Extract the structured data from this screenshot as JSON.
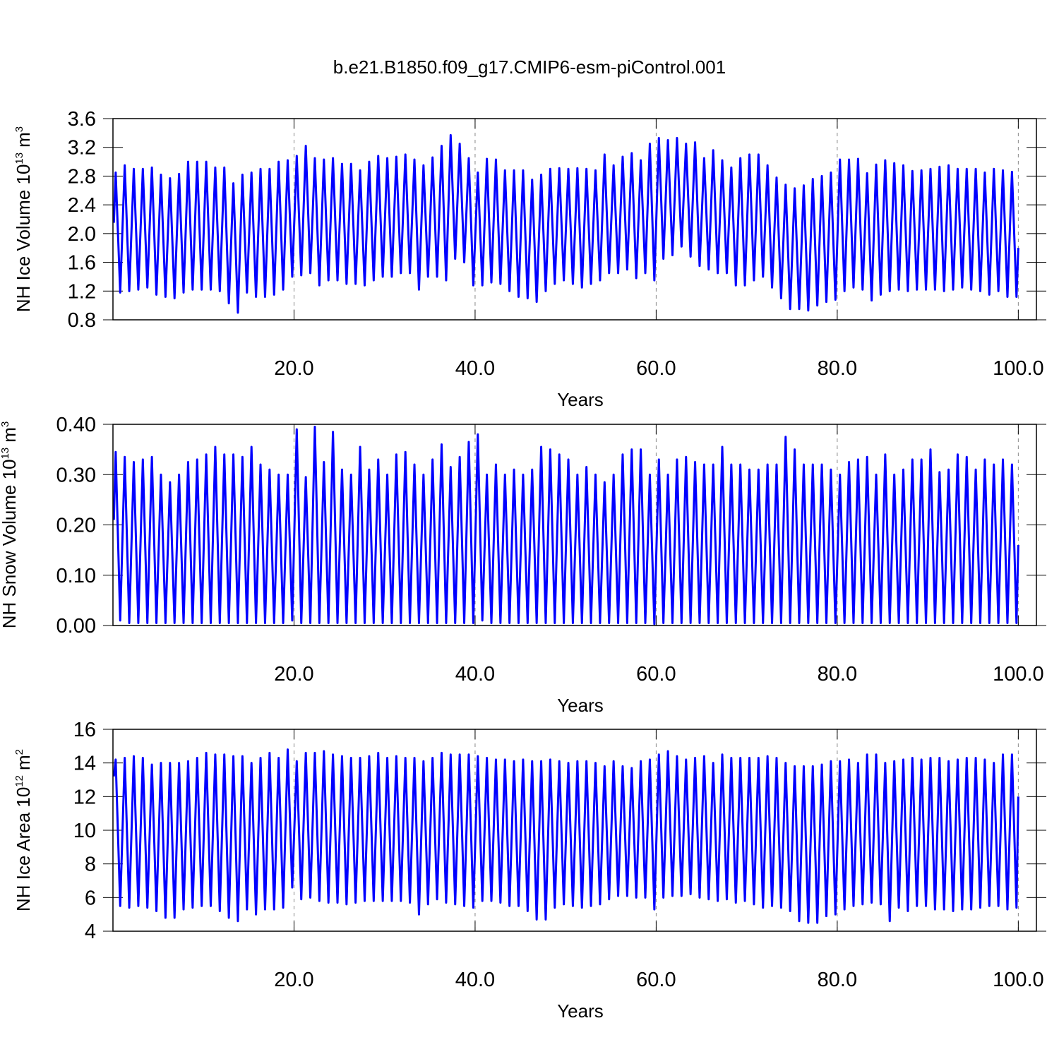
{
  "chart_data": [
    {
      "type": "line",
      "title": "b.e21.B1850.f09_g17.CMIP6-esm-piControl.001",
      "ylabel": {
        "text": "NH Ice Volume 10",
        "exponent": "13",
        "unit": "m",
        "unit_exponent": "3"
      },
      "xlabel": "Years",
      "color": "#0000ff",
      "grid": true,
      "xlim": [
        0,
        102
      ],
      "xticks": [
        {
          "value": 20,
          "label": "20.0"
        },
        {
          "value": 40,
          "label": "40.0"
        },
        {
          "value": 60,
          "label": "60.0"
        },
        {
          "value": 80,
          "label": "80.0"
        },
        {
          "value": 100,
          "label": "100.0"
        }
      ],
      "ylim": [
        0.8,
        3.6
      ],
      "yticks": [
        0.8,
        1.2,
        1.6,
        {
          "value": 2,
          "label": "2.0"
        },
        2.4,
        2.8,
        3.2,
        3.6
      ],
      "x": [
        0.1,
        0.3,
        0.8,
        1.3,
        1.8,
        2.3,
        2.8,
        3.3,
        3.8,
        4.3,
        4.8,
        5.3,
        5.8,
        6.3,
        6.8,
        7.3,
        7.8,
        8.3,
        8.8,
        9.3,
        9.8,
        10.3,
        10.8,
        11.3,
        11.8,
        12.3,
        12.8,
        13.3,
        13.8,
        14.3,
        14.8,
        15.3,
        15.8,
        16.3,
        16.8,
        17.3,
        17.8,
        18.3,
        18.8,
        19.3,
        19.8,
        20.3,
        20.8,
        21.3,
        21.8,
        22.3,
        22.8,
        23.3,
        23.8,
        24.3,
        24.8,
        25.3,
        25.8,
        26.3,
        26.8,
        27.3,
        27.8,
        28.3,
        28.8,
        29.3,
        29.8,
        30.3,
        30.8,
        31.3,
        31.8,
        32.3,
        32.8,
        33.3,
        33.8,
        34.3,
        34.8,
        35.3,
        35.8,
        36.3,
        36.8,
        37.3,
        37.8,
        38.3,
        38.8,
        39.3,
        39.8,
        40.3,
        40.8,
        41.3,
        41.8,
        42.3,
        42.8,
        43.3,
        43.8,
        44.3,
        44.8,
        45.3,
        45.8,
        46.3,
        46.8,
        47.3,
        47.8,
        48.3,
        48.8,
        49.3,
        49.8,
        50.3,
        50.8,
        51.3,
        51.8,
        52.3,
        52.8,
        53.3,
        53.8,
        54.3,
        54.8,
        55.3,
        55.8,
        56.3,
        56.8,
        57.3,
        57.8,
        58.3,
        58.8,
        59.3,
        59.8,
        60.3,
        60.8,
        61.3,
        61.8,
        62.3,
        62.8,
        63.3,
        63.8,
        64.3,
        64.8,
        65.3,
        65.8,
        66.3,
        66.8,
        67.3,
        67.8,
        68.3,
        68.8,
        69.3,
        69.8,
        70.3,
        70.8,
        71.3,
        71.8,
        72.3,
        72.8,
        73.3,
        73.8,
        74.3,
        74.8,
        75.3,
        75.8,
        76.3,
        76.8,
        77.3,
        77.8,
        78.3,
        78.8,
        79.3,
        79.8,
        80.3,
        80.8,
        81.3,
        81.8,
        82.3,
        82.8,
        83.3,
        83.8,
        84.3,
        84.8,
        85.3,
        85.8,
        86.3,
        86.8,
        87.3,
        87.8,
        88.3,
        88.8,
        89.3,
        89.8,
        90.3,
        90.8,
        91.3,
        91.8,
        92.3,
        92.8,
        93.3,
        93.8,
        94.3,
        94.8,
        95.3,
        95.8,
        96.3,
        96.8,
        97.3,
        97.8,
        98.3,
        98.8,
        99.3,
        99.8,
        100
      ],
      "values": [
        2.15,
        2.85,
        1.18,
        2.95,
        1.2,
        2.9,
        1.22,
        2.9,
        1.25,
        2.92,
        1.15,
        2.82,
        1.12,
        2.77,
        1.1,
        2.83,
        1.18,
        3.0,
        1.22,
        3.0,
        1.22,
        3.0,
        1.22,
        2.92,
        1.2,
        2.92,
        1.03,
        2.7,
        0.9,
        2.82,
        1.18,
        2.85,
        1.12,
        2.9,
        1.12,
        2.9,
        1.15,
        3.0,
        1.22,
        3.02,
        1.4,
        3.08,
        1.42,
        3.22,
        1.45,
        3.05,
        1.28,
        3.03,
        1.35,
        3.05,
        1.35,
        2.97,
        1.3,
        2.97,
        1.3,
        2.88,
        1.28,
        3.0,
        1.35,
        3.08,
        1.4,
        3.05,
        1.4,
        3.07,
        1.45,
        3.1,
        1.45,
        3.03,
        1.22,
        2.95,
        1.4,
        3.06,
        1.4,
        3.22,
        1.35,
        3.37,
        1.65,
        3.25,
        1.6,
        3.05,
        1.28,
        2.85,
        1.28,
        3.04,
        1.32,
        3.03,
        1.3,
        2.88,
        1.2,
        2.88,
        1.12,
        2.88,
        1.1,
        2.75,
        1.05,
        2.82,
        1.2,
        2.9,
        1.3,
        2.91,
        1.35,
        2.9,
        1.3,
        2.91,
        1.25,
        2.9,
        1.3,
        2.88,
        1.35,
        3.1,
        1.45,
        2.95,
        1.45,
        3.07,
        1.5,
        3.12,
        1.38,
        3.02,
        1.45,
        3.25,
        1.35,
        3.33,
        1.65,
        3.3,
        1.7,
        3.33,
        1.82,
        3.25,
        1.68,
        3.27,
        1.55,
        3.05,
        1.5,
        3.16,
        1.45,
        3.02,
        1.45,
        2.92,
        1.28,
        3.05,
        1.28,
        3.1,
        1.35,
        3.1,
        1.4,
        2.95,
        1.25,
        2.78,
        1.1,
        2.68,
        0.95,
        2.63,
        0.95,
        2.67,
        0.93,
        2.76,
        1.0,
        2.8,
        1.05,
        2.85,
        1.08,
        3.03,
        1.2,
        3.03,
        1.25,
        3.04,
        1.22,
        2.84,
        1.07,
        2.96,
        1.15,
        3.02,
        1.2,
        2.98,
        1.22,
        2.95,
        1.2,
        2.87,
        1.22,
        2.88,
        1.22,
        2.9,
        1.22,
        2.93,
        1.2,
        2.95,
        1.22,
        2.9,
        1.25,
        2.9,
        1.22,
        2.9,
        1.2,
        2.85,
        1.15,
        2.9,
        1.2,
        2.88,
        1.12,
        2.86,
        1.12,
        1.8
      ]
    },
    {
      "type": "line",
      "ylabel": {
        "text": "NH Snow Volume 10",
        "exponent": "13",
        "unit": "m",
        "unit_exponent": "3"
      },
      "xlabel": "Years",
      "color": "#0000ff",
      "grid": true,
      "xlim": [
        0,
        102
      ],
      "xticks": [
        {
          "value": 20,
          "label": "20.0"
        },
        {
          "value": 40,
          "label": "40.0"
        },
        {
          "value": 60,
          "label": "60.0"
        },
        {
          "value": 80,
          "label": "80.0"
        },
        {
          "value": 100,
          "label": "100.0"
        }
      ],
      "ylim": [
        0,
        0.4
      ],
      "yticks": [
        {
          "value": 0,
          "label": "0.00"
        },
        {
          "value": 0.1,
          "label": "0.10"
        },
        {
          "value": 0.2,
          "label": "0.20"
        },
        {
          "value": 0.3,
          "label": "0.30"
        },
        {
          "value": 0.4,
          "label": "0.40"
        }
      ],
      "x": [
        0.1,
        0.3,
        0.8,
        1.3,
        1.8,
        2.3,
        2.8,
        3.3,
        3.8,
        4.3,
        4.8,
        5.3,
        5.8,
        6.3,
        6.8,
        7.3,
        7.8,
        8.3,
        8.8,
        9.3,
        9.8,
        10.3,
        10.8,
        11.3,
        11.8,
        12.3,
        12.8,
        13.3,
        13.8,
        14.3,
        14.8,
        15.3,
        15.8,
        16.3,
        16.8,
        17.3,
        17.8,
        18.3,
        18.8,
        19.3,
        19.8,
        20.3,
        20.8,
        21.3,
        21.8,
        22.3,
        22.8,
        23.3,
        23.8,
        24.3,
        24.8,
        25.3,
        25.8,
        26.3,
        26.8,
        27.3,
        27.8,
        28.3,
        28.8,
        29.3,
        29.8,
        30.3,
        30.8,
        31.3,
        31.8,
        32.3,
        32.8,
        33.3,
        33.8,
        34.3,
        34.8,
        35.3,
        35.8,
        36.3,
        36.8,
        37.3,
        37.8,
        38.3,
        38.8,
        39.3,
        39.8,
        40.3,
        40.8,
        41.3,
        41.8,
        42.3,
        42.8,
        43.3,
        43.8,
        44.3,
        44.8,
        45.3,
        45.8,
        46.3,
        46.8,
        47.3,
        47.8,
        48.3,
        48.8,
        49.3,
        49.8,
        50.3,
        50.8,
        51.3,
        51.8,
        52.3,
        52.8,
        53.3,
        53.8,
        54.3,
        54.8,
        55.3,
        55.8,
        56.3,
        56.8,
        57.3,
        57.8,
        58.3,
        58.8,
        59.3,
        59.8,
        60.3,
        60.8,
        61.3,
        61.8,
        62.3,
        62.8,
        63.3,
        63.8,
        64.3,
        64.8,
        65.3,
        65.8,
        66.3,
        66.8,
        67.3,
        67.8,
        68.3,
        68.8,
        69.3,
        69.8,
        70.3,
        70.8,
        71.3,
        71.8,
        72.3,
        72.8,
        73.3,
        73.8,
        74.3,
        74.8,
        75.3,
        75.8,
        76.3,
        76.8,
        77.3,
        77.8,
        78.3,
        78.8,
        79.3,
        79.8,
        80.3,
        80.8,
        81.3,
        81.8,
        82.3,
        82.8,
        83.3,
        83.8,
        84.3,
        84.8,
        85.3,
        85.8,
        86.3,
        86.8,
        87.3,
        87.8,
        88.3,
        88.8,
        89.3,
        89.8,
        90.3,
        90.8,
        91.3,
        91.8,
        92.3,
        92.8,
        93.3,
        93.8,
        94.3,
        94.8,
        95.3,
        95.8,
        96.3,
        96.8,
        97.3,
        97.8,
        98.3,
        98.8,
        99.3,
        99.8,
        100
      ],
      "values": [
        0.21,
        0.345,
        0.01,
        0.335,
        0.005,
        0.325,
        0.005,
        0.33,
        0.005,
        0.335,
        0.005,
        0.3,
        0.005,
        0.285,
        0.005,
        0.3,
        0.005,
        0.325,
        0.005,
        0.33,
        0.005,
        0.34,
        0.005,
        0.355,
        0.005,
        0.34,
        0.005,
        0.34,
        0.005,
        0.335,
        0.005,
        0.355,
        0.005,
        0.32,
        0.005,
        0.31,
        0.005,
        0.3,
        0.005,
        0.3,
        0.01,
        0.39,
        0.005,
        0.295,
        0.005,
        0.395,
        0.005,
        0.325,
        0.005,
        0.385,
        0.005,
        0.31,
        0.005,
        0.3,
        0.005,
        0.355,
        0.005,
        0.31,
        0.005,
        0.33,
        0.005,
        0.3,
        0.005,
        0.34,
        0.005,
        0.345,
        0.005,
        0.32,
        0.005,
        0.3,
        0.005,
        0.33,
        0.005,
        0.36,
        0.005,
        0.315,
        0.005,
        0.335,
        0.005,
        0.365,
        0.005,
        0.38,
        0.01,
        0.3,
        0.005,
        0.32,
        0.005,
        0.3,
        0.005,
        0.31,
        0.005,
        0.3,
        0.005,
        0.31,
        0.005,
        0.355,
        0.005,
        0.35,
        0.005,
        0.34,
        0.005,
        0.33,
        0.005,
        0.3,
        0.005,
        0.315,
        0.005,
        0.3,
        0.005,
        0.285,
        0.005,
        0.3,
        0.005,
        0.34,
        0.005,
        0.35,
        0.005,
        0.35,
        0.005,
        0.3,
        0.003,
        0.33,
        0.005,
        0.3,
        0.005,
        0.33,
        0.005,
        0.335,
        0.005,
        0.325,
        0.005,
        0.32,
        0.005,
        0.32,
        0.005,
        0.355,
        0.005,
        0.32,
        0.005,
        0.32,
        0.005,
        0.31,
        0.005,
        0.31,
        0.005,
        0.32,
        0.005,
        0.32,
        0.005,
        0.375,
        0.005,
        0.35,
        0.005,
        0.32,
        0.005,
        0.32,
        0.005,
        0.32,
        0.005,
        0.31,
        0.005,
        0.3,
        0.005,
        0.325,
        0.005,
        0.33,
        0.005,
        0.335,
        0.005,
        0.3,
        0.005,
        0.34,
        0.005,
        0.3,
        0.005,
        0.31,
        0.005,
        0.33,
        0.005,
        0.33,
        0.005,
        0.35,
        0.005,
        0.305,
        0.005,
        0.31,
        0.005,
        0.34,
        0.005,
        0.335,
        0.005,
        0.31,
        0.005,
        0.33,
        0.005,
        0.32,
        0.005,
        0.33,
        0.005,
        0.32,
        0.005,
        0.16
      ]
    },
    {
      "type": "line",
      "ylabel": {
        "text": "NH Ice Area 10",
        "exponent": "12",
        "unit": "m",
        "unit_exponent": "2"
      },
      "xlabel": "Years",
      "color": "#0000ff",
      "grid": true,
      "xlim": [
        0,
        102
      ],
      "xticks": [
        {
          "value": 20,
          "label": "20.0"
        },
        {
          "value": 40,
          "label": "40.0"
        },
        {
          "value": 60,
          "label": "60.0"
        },
        {
          "value": 80,
          "label": "80.0"
        },
        {
          "value": 100,
          "label": "100.0"
        }
      ],
      "ylim": [
        4,
        16
      ],
      "yticks": [
        4,
        6,
        8,
        10,
        12,
        14,
        16
      ],
      "x": [
        0.1,
        0.3,
        0.8,
        1.3,
        1.8,
        2.3,
        2.8,
        3.3,
        3.8,
        4.3,
        4.8,
        5.3,
        5.8,
        6.3,
        6.8,
        7.3,
        7.8,
        8.3,
        8.8,
        9.3,
        9.8,
        10.3,
        10.8,
        11.3,
        11.8,
        12.3,
        12.8,
        13.3,
        13.8,
        14.3,
        14.8,
        15.3,
        15.8,
        16.3,
        16.8,
        17.3,
        17.8,
        18.3,
        18.8,
        19.3,
        19.8,
        20.3,
        20.8,
        21.3,
        21.8,
        22.3,
        22.8,
        23.3,
        23.8,
        24.3,
        24.8,
        25.3,
        25.8,
        26.3,
        26.8,
        27.3,
        27.8,
        28.3,
        28.8,
        29.3,
        29.8,
        30.3,
        30.8,
        31.3,
        31.8,
        32.3,
        32.8,
        33.3,
        33.8,
        34.3,
        34.8,
        35.3,
        35.8,
        36.3,
        36.8,
        37.3,
        37.8,
        38.3,
        38.8,
        39.3,
        39.8,
        40.3,
        40.8,
        41.3,
        41.8,
        42.3,
        42.8,
        43.3,
        43.8,
        44.3,
        44.8,
        45.3,
        45.8,
        46.3,
        46.8,
        47.3,
        47.8,
        48.3,
        48.8,
        49.3,
        49.8,
        50.3,
        50.8,
        51.3,
        51.8,
        52.3,
        52.8,
        53.3,
        53.8,
        54.3,
        54.8,
        55.3,
        55.8,
        56.3,
        56.8,
        57.3,
        57.8,
        58.3,
        58.8,
        59.3,
        59.8,
        60.3,
        60.8,
        61.3,
        61.8,
        62.3,
        62.8,
        63.3,
        63.8,
        64.3,
        64.8,
        65.3,
        65.8,
        66.3,
        66.8,
        67.3,
        67.8,
        68.3,
        68.8,
        69.3,
        69.8,
        70.3,
        70.8,
        71.3,
        71.8,
        72.3,
        72.8,
        73.3,
        73.8,
        74.3,
        74.8,
        75.3,
        75.8,
        76.3,
        76.8,
        77.3,
        77.8,
        78.3,
        78.8,
        79.3,
        79.8,
        80.3,
        80.8,
        81.3,
        81.8,
        82.3,
        82.8,
        83.3,
        83.8,
        84.3,
        84.8,
        85.3,
        85.8,
        86.3,
        86.8,
        87.3,
        87.8,
        88.3,
        88.8,
        89.3,
        89.8,
        90.3,
        90.8,
        91.3,
        91.8,
        92.3,
        92.8,
        93.3,
        93.8,
        94.3,
        94.8,
        95.3,
        95.8,
        96.3,
        96.8,
        97.3,
        97.8,
        98.3,
        98.8,
        99.3,
        99.8,
        100
      ],
      "values": [
        13.2,
        14.2,
        5.5,
        14.3,
        5.4,
        14.4,
        5.5,
        14.3,
        5.4,
        13.9,
        5.2,
        14.0,
        4.8,
        14.0,
        4.8,
        14.0,
        5.3,
        14.1,
        5.4,
        14.3,
        5.5,
        14.6,
        5.5,
        14.5,
        5.2,
        14.5,
        4.8,
        14.4,
        4.6,
        14.4,
        5.3,
        14.0,
        5.0,
        14.3,
        5.3,
        14.6,
        5.3,
        14.3,
        5.4,
        14.8,
        6.6,
        14.1,
        5.9,
        14.6,
        6.0,
        14.6,
        5.8,
        14.7,
        5.7,
        14.5,
        5.7,
        14.4,
        5.6,
        14.3,
        5.7,
        14.3,
        5.8,
        14.4,
        5.8,
        14.6,
        5.8,
        14.3,
        5.8,
        14.4,
        5.8,
        14.3,
        5.7,
        14.3,
        5.0,
        14.1,
        5.6,
        14.3,
        5.9,
        14.6,
        5.7,
        14.5,
        5.6,
        14.5,
        5.5,
        14.5,
        5.4,
        14.4,
        5.8,
        14.3,
        5.8,
        14.2,
        5.7,
        14.2,
        5.5,
        14.1,
        5.5,
        14.2,
        5.2,
        14.1,
        4.7,
        14.1,
        4.7,
        14.2,
        5.4,
        14.1,
        5.6,
        14.0,
        5.5,
        14.1,
        5.4,
        14.1,
        5.5,
        14.0,
        5.6,
        13.8,
        5.9,
        14.1,
        6.1,
        13.8,
        6.1,
        13.7,
        6.0,
        14.1,
        6.0,
        14.2,
        5.3,
        14.5,
        6.0,
        14.7,
        6.1,
        14.4,
        6.1,
        14.2,
        6.2,
        14.3,
        6.0,
        14.4,
        5.9,
        14.0,
        5.8,
        14.5,
        5.9,
        14.3,
        5.7,
        14.3,
        5.8,
        14.3,
        5.6,
        14.3,
        5.4,
        14.4,
        5.5,
        14.3,
        5.4,
        14.0,
        5.2,
        13.8,
        4.6,
        13.8,
        4.5,
        13.8,
        4.5,
        13.9,
        4.9,
        14.1,
        5.0,
        14.1,
        5.3,
        14.2,
        5.5,
        14.0,
        5.6,
        14.5,
        5.7,
        14.5,
        5.6,
        14.0,
        4.6,
        14.1,
        5.4,
        14.2,
        5.2,
        14.3,
        5.5,
        14.2,
        5.5,
        14.3,
        5.3,
        14.3,
        5.3,
        14.1,
        5.2,
        14.2,
        5.3,
        14.3,
        5.3,
        14.3,
        5.4,
        14.2,
        5.5,
        14.0,
        5.5,
        14.5,
        5.3,
        14.5,
        5.4,
        12.0
      ]
    }
  ]
}
